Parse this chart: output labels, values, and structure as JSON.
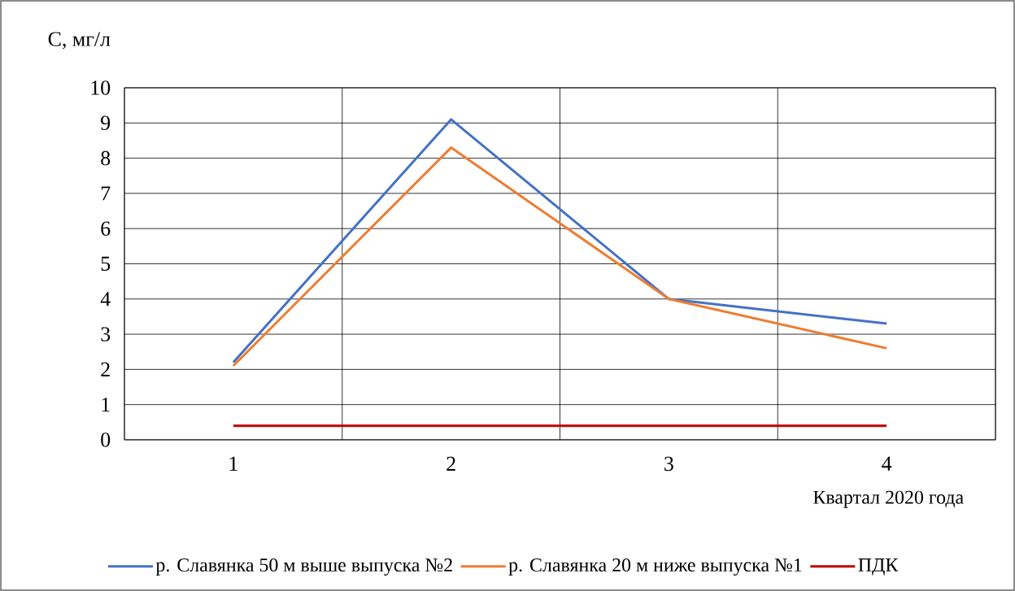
{
  "chart_data": {
    "type": "line",
    "ylabel": "C, мг/л",
    "xlabel": "Квартал 2020 года",
    "categories": [
      "1",
      "2",
      "3",
      "4"
    ],
    "series": [
      {
        "name": "р. Славянка 50 м выше выпуска №2",
        "color": "#4472c4",
        "values": [
          2.2,
          9.1,
          4.0,
          3.3
        ]
      },
      {
        "name": "р. Славянка 20 м ниже выпуска №1",
        "color": "#ed7d31",
        "values": [
          2.1,
          8.3,
          4.0,
          2.6
        ]
      },
      {
        "name": "ПДК",
        "color": "#c00000",
        "values": [
          0.4,
          0.4,
          0.4,
          0.4
        ]
      }
    ],
    "ylim": [
      0,
      10
    ],
    "yticks": [
      0,
      1,
      2,
      3,
      4,
      5,
      6,
      7,
      8,
      9,
      10
    ],
    "grid": true,
    "legend": "bottom"
  }
}
